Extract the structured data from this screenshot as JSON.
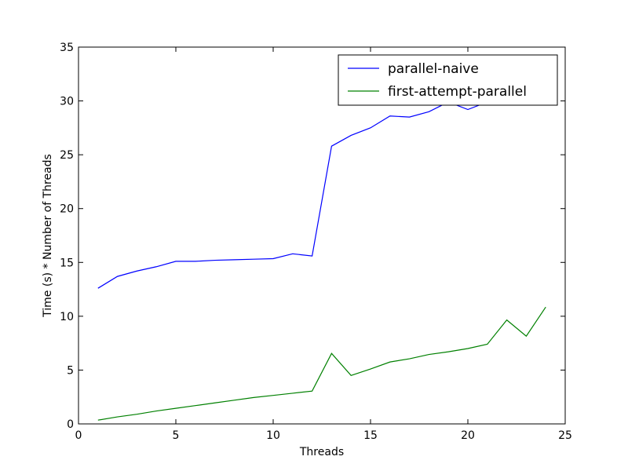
{
  "chart_data": {
    "type": "line",
    "title": "",
    "xlabel": "Threads",
    "ylabel": "Time (s) * Number of Threads",
    "xlim": [
      0,
      25
    ],
    "ylim": [
      0,
      35
    ],
    "xticks": [
      0,
      5,
      10,
      15,
      20,
      25
    ],
    "yticks": [
      0,
      5,
      10,
      15,
      20,
      25,
      30,
      35
    ],
    "grid": false,
    "legend_position": "top-right",
    "x": [
      1,
      2,
      3,
      4,
      5,
      6,
      7,
      8,
      9,
      10,
      11,
      12,
      13,
      14,
      15,
      16,
      17,
      18,
      19,
      20,
      21,
      22,
      23,
      24
    ],
    "series": [
      {
        "name": "parallel-naive",
        "color": "#0000ff",
        "values": [
          12.6,
          13.7,
          14.2,
          14.6,
          15.1,
          15.1,
          15.2,
          15.25,
          15.3,
          15.35,
          15.8,
          15.6,
          25.8,
          26.8,
          27.5,
          28.6,
          28.5,
          29.0,
          29.9,
          29.2,
          29.9,
          30.2,
          29.7,
          30.1
        ]
      },
      {
        "name": "first-attempt-parallel",
        "color": "#008000",
        "values": [
          0.35,
          0.65,
          0.9,
          1.2,
          1.45,
          1.7,
          1.95,
          2.2,
          2.45,
          2.65,
          2.85,
          3.05,
          6.55,
          4.5,
          5.1,
          5.75,
          6.05,
          6.45,
          6.7,
          7.0,
          7.4,
          9.65,
          8.15,
          10.85
        ]
      }
    ]
  }
}
